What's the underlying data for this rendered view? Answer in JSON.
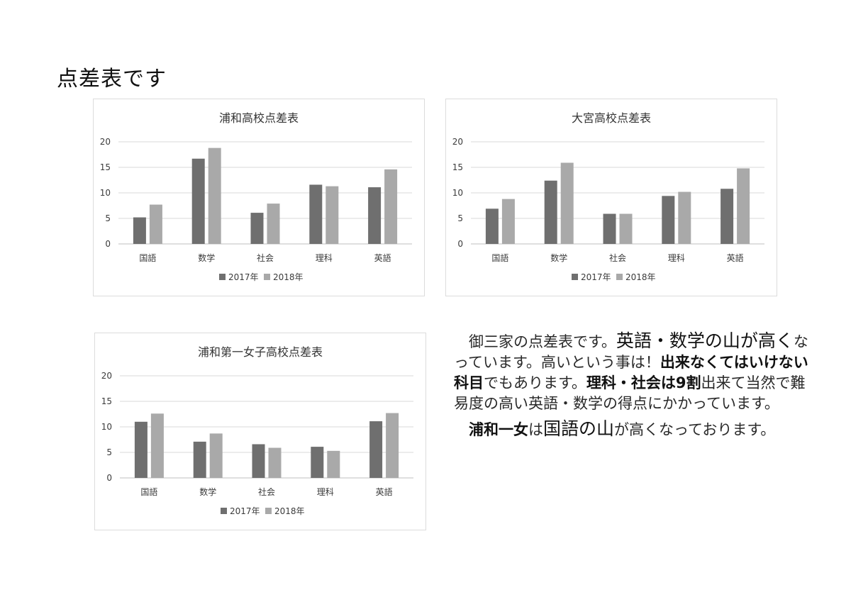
{
  "page": {
    "title": "点差表です"
  },
  "colors": {
    "series_2017": "#6f6f6f",
    "series_2018": "#a9a9a9",
    "grid": "#d8d8d8",
    "axis": "#bfbfbf",
    "text": "#3a3a3a"
  },
  "chart_data": [
    {
      "type": "bar",
      "title": "浦和高校点差表",
      "categories": [
        "国語",
        "数学",
        "社会",
        "理科",
        "英語"
      ],
      "series": [
        {
          "name": "2017年",
          "values": [
            5.2,
            16.7,
            6.1,
            11.6,
            11.1
          ]
        },
        {
          "name": "2018年",
          "values": [
            7.7,
            18.8,
            7.9,
            11.3,
            14.6
          ]
        }
      ],
      "yticks": [
        "0",
        "5",
        "10",
        "15",
        "20"
      ],
      "ylim": [
        0,
        20
      ],
      "grid": true,
      "legend": "bottom"
    },
    {
      "type": "bar",
      "title": "大宮高校点差表",
      "categories": [
        "国語",
        "数学",
        "社会",
        "理科",
        "英語"
      ],
      "series": [
        {
          "name": "2017年",
          "values": [
            6.9,
            12.4,
            5.9,
            9.4,
            10.8
          ]
        },
        {
          "name": "2018年",
          "values": [
            8.8,
            15.9,
            5.9,
            10.2,
            14.8
          ]
        }
      ],
      "yticks": [
        "0",
        "5",
        "10",
        "15",
        "20"
      ],
      "ylim": [
        0,
        20
      ],
      "grid": true,
      "legend": "bottom"
    },
    {
      "type": "bar",
      "title": "浦和第一女子高校点差表",
      "categories": [
        "国語",
        "数学",
        "社会",
        "理科",
        "英語"
      ],
      "series": [
        {
          "name": "2017年",
          "values": [
            11.0,
            7.1,
            6.6,
            6.1,
            11.1
          ]
        },
        {
          "name": "2018年",
          "values": [
            12.6,
            8.7,
            5.9,
            5.3,
            12.7
          ]
        }
      ],
      "yticks": [
        "0",
        "5",
        "10",
        "15",
        "20"
      ],
      "ylim": [
        0,
        20
      ],
      "grid": true,
      "legend": "bottom"
    }
  ],
  "note": {
    "p1_intro": "御三家の点差表です。",
    "p1_em1": "英語・数学の山が高く",
    "p1_mid1": "なっています。高いという事は！",
    "p1_b1": "出来なくてはいけない科目",
    "p1_mid2": "でもあります。",
    "p1_b2": "理科・社会は9割",
    "p1_mid3": "出来て当然で難易度の高い英語・数学の得点にかかっています。",
    "p2_b1": "浦和一女",
    "p2_mid1": "は",
    "p2_em1": "国語の山",
    "p2_end": "が高くなっております。"
  }
}
